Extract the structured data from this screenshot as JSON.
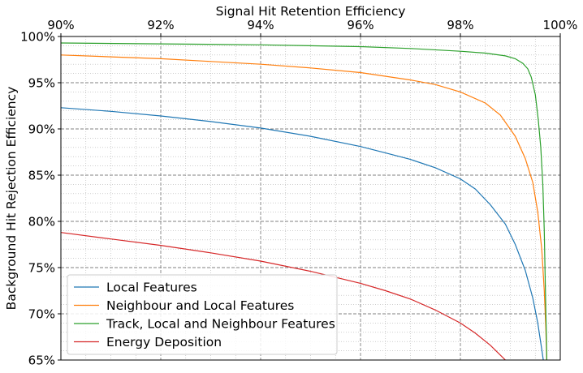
{
  "chart_data": {
    "type": "line",
    "xlabel": "Signal Hit  Retention Efficiency",
    "ylabel": "Background Hit  Rejection Efficiency",
    "xlim": [
      90,
      100
    ],
    "ylim": [
      65,
      100
    ],
    "x_axis_position": "top",
    "x_ticks": [
      90,
      92,
      94,
      96,
      98,
      100
    ],
    "x_tick_labels": [
      "90%",
      "92%",
      "94%",
      "96%",
      "98%",
      "100%"
    ],
    "y_ticks": [
      65,
      70,
      75,
      80,
      85,
      90,
      95,
      100
    ],
    "y_tick_labels": [
      "65%",
      "70%",
      "75%",
      "80%",
      "85%",
      "90%",
      "95%",
      "100%"
    ],
    "grid": true,
    "minor_grid": true,
    "legend_position": "lower-left",
    "series": [
      {
        "name": "Local Features",
        "color": "#1f77b4",
        "points": [
          [
            90.0,
            92.3
          ],
          [
            91.0,
            91.9
          ],
          [
            92.0,
            91.4
          ],
          [
            93.0,
            90.8
          ],
          [
            94.0,
            90.1
          ],
          [
            95.0,
            89.2
          ],
          [
            96.0,
            88.1
          ],
          [
            96.5,
            87.4
          ],
          [
            97.0,
            86.7
          ],
          [
            97.5,
            85.8
          ],
          [
            98.0,
            84.6
          ],
          [
            98.3,
            83.5
          ],
          [
            98.6,
            81.8
          ],
          [
            98.9,
            79.7
          ],
          [
            99.1,
            77.5
          ],
          [
            99.3,
            74.7
          ],
          [
            99.45,
            71.7
          ],
          [
            99.55,
            69.0
          ],
          [
            99.62,
            66.5
          ],
          [
            99.66,
            65.0
          ]
        ]
      },
      {
        "name": "Neighbour and Local Features",
        "color": "#ff7f0e",
        "points": [
          [
            90.0,
            98.0
          ],
          [
            91.0,
            97.8
          ],
          [
            92.0,
            97.6
          ],
          [
            93.0,
            97.3
          ],
          [
            94.0,
            97.0
          ],
          [
            95.0,
            96.6
          ],
          [
            96.0,
            96.1
          ],
          [
            97.0,
            95.3
          ],
          [
            97.5,
            94.8
          ],
          [
            98.0,
            94.0
          ],
          [
            98.5,
            92.8
          ],
          [
            98.8,
            91.5
          ],
          [
            99.1,
            89.2
          ],
          [
            99.3,
            86.8
          ],
          [
            99.45,
            84.2
          ],
          [
            99.55,
            81.0
          ],
          [
            99.63,
            77.0
          ],
          [
            99.68,
            72.5
          ],
          [
            99.71,
            68.5
          ],
          [
            99.73,
            65.0
          ]
        ]
      },
      {
        "name": "Track, Local and Neighbour Features",
        "color": "#2ca02c",
        "points": [
          [
            90.0,
            99.3
          ],
          [
            92.0,
            99.2
          ],
          [
            94.0,
            99.1
          ],
          [
            96.0,
            98.9
          ],
          [
            97.0,
            98.7
          ],
          [
            98.0,
            98.4
          ],
          [
            98.5,
            98.2
          ],
          [
            98.9,
            97.9
          ],
          [
            99.1,
            97.6
          ],
          [
            99.25,
            97.1
          ],
          [
            99.35,
            96.5
          ],
          [
            99.42,
            95.6
          ],
          [
            99.5,
            93.7
          ],
          [
            99.56,
            91.0
          ],
          [
            99.61,
            88.0
          ],
          [
            99.65,
            84.0
          ],
          [
            99.68,
            79.0
          ],
          [
            99.7,
            73.0
          ],
          [
            99.72,
            68.0
          ],
          [
            99.73,
            65.0
          ]
        ]
      },
      {
        "name": "Energy Deposition",
        "color": "#d62728",
        "points": [
          [
            90.0,
            78.8
          ],
          [
            91.0,
            78.1
          ],
          [
            92.0,
            77.4
          ],
          [
            93.0,
            76.6
          ],
          [
            94.0,
            75.7
          ],
          [
            95.0,
            74.6
          ],
          [
            96.0,
            73.3
          ],
          [
            96.5,
            72.5
          ],
          [
            97.0,
            71.6
          ],
          [
            97.5,
            70.4
          ],
          [
            98.0,
            69.0
          ],
          [
            98.3,
            67.9
          ],
          [
            98.6,
            66.6
          ],
          [
            98.9,
            65.0
          ]
        ]
      }
    ]
  }
}
